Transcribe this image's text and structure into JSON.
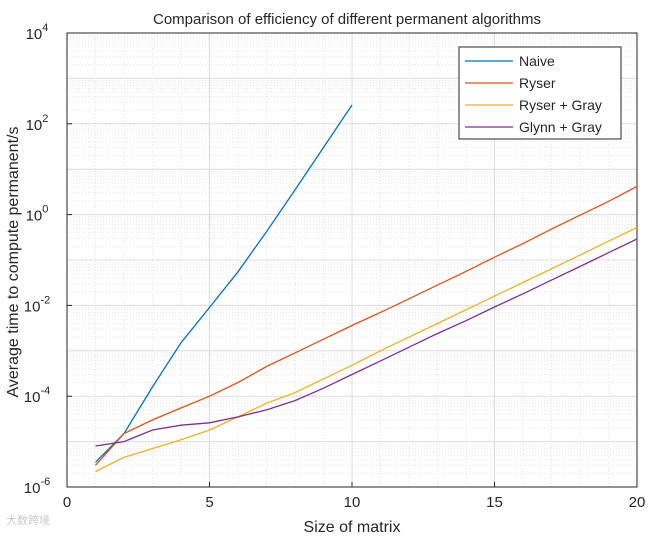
{
  "chart_data": {
    "type": "line",
    "title": "Comparison of efficiency of different permanent algorithms",
    "xlabel": "Size of matrix",
    "ylabel": "Average time to compute permanent/s",
    "xlim": [
      0,
      20
    ],
    "ylim": [
      1e-06,
      10000
    ],
    "yscale": "log",
    "grid": true,
    "minor_grid": true,
    "legend_position": "top-right",
    "x_ticks": [
      0,
      5,
      10,
      15,
      20
    ],
    "y_ticks": [
      {
        "mantissa": "10",
        "exp": "-6",
        "value": 1e-06
      },
      {
        "mantissa": "10",
        "exp": "-4",
        "value": 0.0001
      },
      {
        "mantissa": "10",
        "exp": "-2",
        "value": 0.01
      },
      {
        "mantissa": "10",
        "exp": "0",
        "value": 1
      },
      {
        "mantissa": "10",
        "exp": "2",
        "value": 100
      },
      {
        "mantissa": "10",
        "exp": "4",
        "value": 10000
      }
    ],
    "series": [
      {
        "name": "Naive",
        "color": "#0072BD",
        "x": [
          1,
          2,
          3,
          4,
          5,
          6,
          7,
          8,
          9,
          10
        ],
        "y": [
          3.5e-06,
          1.5e-05,
          0.00016,
          0.0015,
          0.009,
          0.055,
          0.42,
          3.5,
          30,
          260
        ]
      },
      {
        "name": "Ryser",
        "color": "#D95319",
        "x": [
          1,
          2,
          3,
          4,
          5,
          6,
          7,
          8,
          9,
          10,
          11,
          12,
          13,
          14,
          15,
          16,
          17,
          18,
          19,
          20
        ],
        "y": [
          3e-06,
          1.5e-05,
          3e-05,
          5.5e-05,
          0.0001,
          0.0002,
          0.00045,
          0.0009,
          0.0018,
          0.0036,
          0.007,
          0.014,
          0.028,
          0.056,
          0.115,
          0.23,
          0.48,
          0.97,
          1.95,
          4.2
        ]
      },
      {
        "name": "Ryser + Gray",
        "color": "#EDB120",
        "x": [
          1,
          2,
          3,
          4,
          5,
          6,
          7,
          8,
          9,
          10,
          11,
          12,
          13,
          14,
          15,
          16,
          17,
          18,
          19,
          20
        ],
        "y": [
          2.2e-06,
          4.5e-06,
          7e-06,
          1.1e-05,
          1.8e-05,
          3.5e-05,
          7e-05,
          0.00012,
          0.00024,
          0.00048,
          0.001,
          0.002,
          0.004,
          0.008,
          0.016,
          0.032,
          0.064,
          0.128,
          0.26,
          0.52
        ]
      },
      {
        "name": "Glynn + Gray",
        "color": "#7E2F8E",
        "x": [
          1,
          2,
          3,
          4,
          5,
          6,
          7,
          8,
          9,
          10,
          11,
          12,
          13,
          14,
          15,
          16,
          17,
          18,
          19,
          20
        ],
        "y": [
          8e-06,
          1e-05,
          1.8e-05,
          2.3e-05,
          2.6e-05,
          3.5e-05,
          5e-05,
          8e-05,
          0.00015,
          0.0003,
          0.0006,
          0.0012,
          0.0024,
          0.0046,
          0.0092,
          0.018,
          0.036,
          0.072,
          0.145,
          0.29
        ]
      }
    ]
  },
  "watermark": "大数跨境"
}
